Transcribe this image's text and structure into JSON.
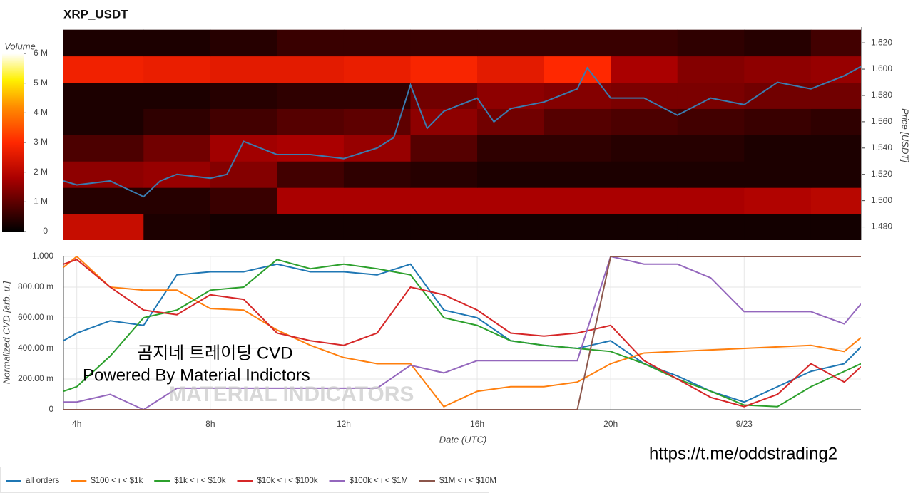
{
  "chart_data": [
    {
      "type": "heatmap",
      "title": "XRP_USDT",
      "y_label": "Price [USDT]",
      "colorbar_label": "Volume",
      "xlim": [
        3.6,
        27.5
      ],
      "ylim": [
        1.47,
        1.632
      ],
      "yticks": [
        {
          "value": 1.48,
          "label": "1.480"
        },
        {
          "value": 1.5,
          "label": "1.500"
        },
        {
          "value": 1.52,
          "label": "1.520"
        },
        {
          "value": 1.54,
          "label": "1.540"
        },
        {
          "value": 1.56,
          "label": "1.560"
        },
        {
          "value": 1.58,
          "label": "1.580"
        },
        {
          "value": 1.6,
          "label": "1.600"
        },
        {
          "value": 1.62,
          "label": "1.620"
        }
      ],
      "zlim": [
        0,
        6000000
      ],
      "zticks": [
        0,
        {
          "value": 1000000,
          "label": "1 M"
        },
        {
          "value": 2000000,
          "label": "2 M"
        },
        {
          "value": 3000000,
          "label": "3 M"
        },
        {
          "value": 4000000,
          "label": "4 M"
        },
        {
          "value": 5000000,
          "label": "5 M"
        },
        {
          "value": 6000000,
          "label": "6 M"
        }
      ],
      "time_bins": [
        3.6,
        6,
        8,
        10,
        12,
        14,
        16,
        18,
        20,
        22,
        24,
        26,
        27.5
      ],
      "price_bins": [
        1.47,
        1.49,
        1.51,
        1.53,
        1.55,
        1.57,
        1.59,
        1.61,
        1.63
      ],
      "z": [
        [
          2200000,
          300000,
          200000,
          200000,
          200000,
          200000,
          200000,
          200000,
          200000,
          200000,
          200000,
          200000
        ],
        [
          400000,
          400000,
          600000,
          1800000,
          1800000,
          1800000,
          1800000,
          1800000,
          1800000,
          1800000,
          1900000,
          2000000
        ],
        [
          1500000,
          1600000,
          1400000,
          700000,
          500000,
          400000,
          300000,
          300000,
          300000,
          300000,
          300000,
          300000
        ],
        [
          800000,
          1200000,
          1700000,
          1800000,
          1600000,
          900000,
          500000,
          500000,
          400000,
          400000,
          300000,
          300000
        ],
        [
          300000,
          500000,
          700000,
          900000,
          1000000,
          1500000,
          1200000,
          900000,
          800000,
          700000,
          600000,
          500000
        ],
        [
          300000,
          300000,
          400000,
          500000,
          500000,
          1200000,
          1500000,
          1400000,
          1300000,
          1300000,
          1200000,
          1200000
        ],
        [
          2800000,
          2700000,
          2600000,
          2600000,
          2700000,
          2900000,
          2600000,
          3000000,
          1800000,
          1400000,
          1500000,
          1600000
        ],
        [
          300000,
          300000,
          400000,
          600000,
          600000,
          600000,
          600000,
          600000,
          600000,
          500000,
          400000,
          700000
        ]
      ],
      "x": [
        3.6,
        4,
        5,
        6,
        6.5,
        7,
        8,
        8.5,
        9,
        10,
        11,
        12,
        13,
        13.5,
        14,
        14.5,
        15,
        16,
        16.5,
        17,
        18,
        19,
        19.3,
        20,
        21,
        22,
        23,
        24,
        25,
        26,
        27,
        27.5
      ],
      "values": [
        1.515,
        1.512,
        1.515,
        1.503,
        1.515,
        1.52,
        1.517,
        1.52,
        1.545,
        1.535,
        1.535,
        1.532,
        1.54,
        1.548,
        1.588,
        1.555,
        1.568,
        1.578,
        1.56,
        1.57,
        1.575,
        1.585,
        1.601,
        1.578,
        1.578,
        1.565,
        1.578,
        1.573,
        1.59,
        1.585,
        1.595,
        1.602
      ],
      "color": "#3a7cb0"
    },
    {
      "type": "line",
      "x_label": "Date (UTC)",
      "y_label": "Normalized CVD [arb. u.]",
      "xlim": [
        3.6,
        27.5
      ],
      "xticks": [
        {
          "value": 4,
          "label": "4h"
        },
        {
          "value": 8,
          "label": "8h"
        },
        {
          "value": 12,
          "label": "12h"
        },
        {
          "value": 16,
          "label": "16h"
        },
        {
          "value": 20,
          "label": "20h"
        },
        {
          "value": 24,
          "label": "9/23"
        }
      ],
      "ylim": [
        0,
        1
      ],
      "yticks": [
        0,
        {
          "value": 0.2,
          "label": "200.00 m"
        },
        {
          "value": 0.4,
          "label": "400.00 m"
        },
        {
          "value": 0.6,
          "label": "600.00 m"
        },
        {
          "value": 0.8,
          "label": "800.00 m"
        },
        {
          "value": 1,
          "label": "1.000"
        }
      ],
      "grid": true,
      "x": [
        3.6,
        4,
        5,
        6,
        7,
        8,
        9,
        10,
        11,
        12,
        13,
        14,
        15,
        16,
        17,
        18,
        19,
        20,
        21,
        22,
        23,
        24,
        25,
        26,
        27,
        27.5
      ],
      "series": [
        {
          "name": "all orders",
          "color": "#1f77b4",
          "values": [
            0.45,
            0.5,
            0.58,
            0.55,
            0.88,
            0.9,
            0.9,
            0.95,
            0.9,
            0.9,
            0.88,
            0.95,
            0.65,
            0.6,
            0.45,
            0.42,
            0.4,
            0.45,
            0.3,
            0.22,
            0.12,
            0.05,
            0.15,
            0.25,
            0.3,
            0.41
          ]
        },
        {
          "name": "$100 < i < $1k",
          "color": "#ff7f0e",
          "values": [
            0.93,
            1.0,
            0.8,
            0.78,
            0.78,
            0.66,
            0.65,
            0.52,
            0.42,
            0.34,
            0.3,
            0.3,
            0.02,
            0.12,
            0.15,
            0.15,
            0.18,
            0.3,
            0.37,
            0.38,
            0.39,
            0.4,
            0.41,
            0.42,
            0.38,
            0.47
          ]
        },
        {
          "name": "$1k < i < $10k",
          "color": "#2ca02c",
          "values": [
            0.12,
            0.15,
            0.35,
            0.6,
            0.65,
            0.78,
            0.8,
            0.98,
            0.92,
            0.95,
            0.92,
            0.88,
            0.6,
            0.55,
            0.45,
            0.42,
            0.4,
            0.38,
            0.3,
            0.2,
            0.12,
            0.03,
            0.02,
            0.15,
            0.25,
            0.3
          ]
        },
        {
          "name": "$10k < i < $100k",
          "color": "#d62728",
          "values": [
            0.95,
            0.98,
            0.8,
            0.65,
            0.62,
            0.75,
            0.72,
            0.5,
            0.45,
            0.42,
            0.5,
            0.8,
            0.75,
            0.65,
            0.5,
            0.48,
            0.5,
            0.55,
            0.32,
            0.2,
            0.08,
            0.02,
            0.1,
            0.3,
            0.18,
            0.28
          ]
        },
        {
          "name": "$100k < i < $1M",
          "color": "#9467bd",
          "values": [
            0.05,
            0.05,
            0.1,
            0.0,
            0.14,
            0.14,
            0.14,
            0.14,
            0.14,
            0.14,
            0.14,
            0.29,
            0.24,
            0.32,
            0.32,
            0.32,
            0.32,
            1.0,
            0.95,
            0.95,
            0.86,
            0.64,
            0.64,
            0.64,
            0.56,
            0.69
          ]
        },
        {
          "name": "$1M < i < $10M",
          "color": "#8c564b",
          "values": [
            0,
            0,
            0,
            0,
            0,
            0,
            0,
            0,
            0,
            0,
            0,
            0,
            0,
            0,
            0,
            0,
            0,
            1,
            1,
            1,
            1,
            1,
            1,
            1,
            1,
            1
          ]
        }
      ],
      "annotations": [
        "곰지네 트레이딩 CVD",
        "Powered By Material Indictors",
        "MATERIAL INDICATORS",
        "https://t.me/oddstrading2"
      ]
    }
  ]
}
